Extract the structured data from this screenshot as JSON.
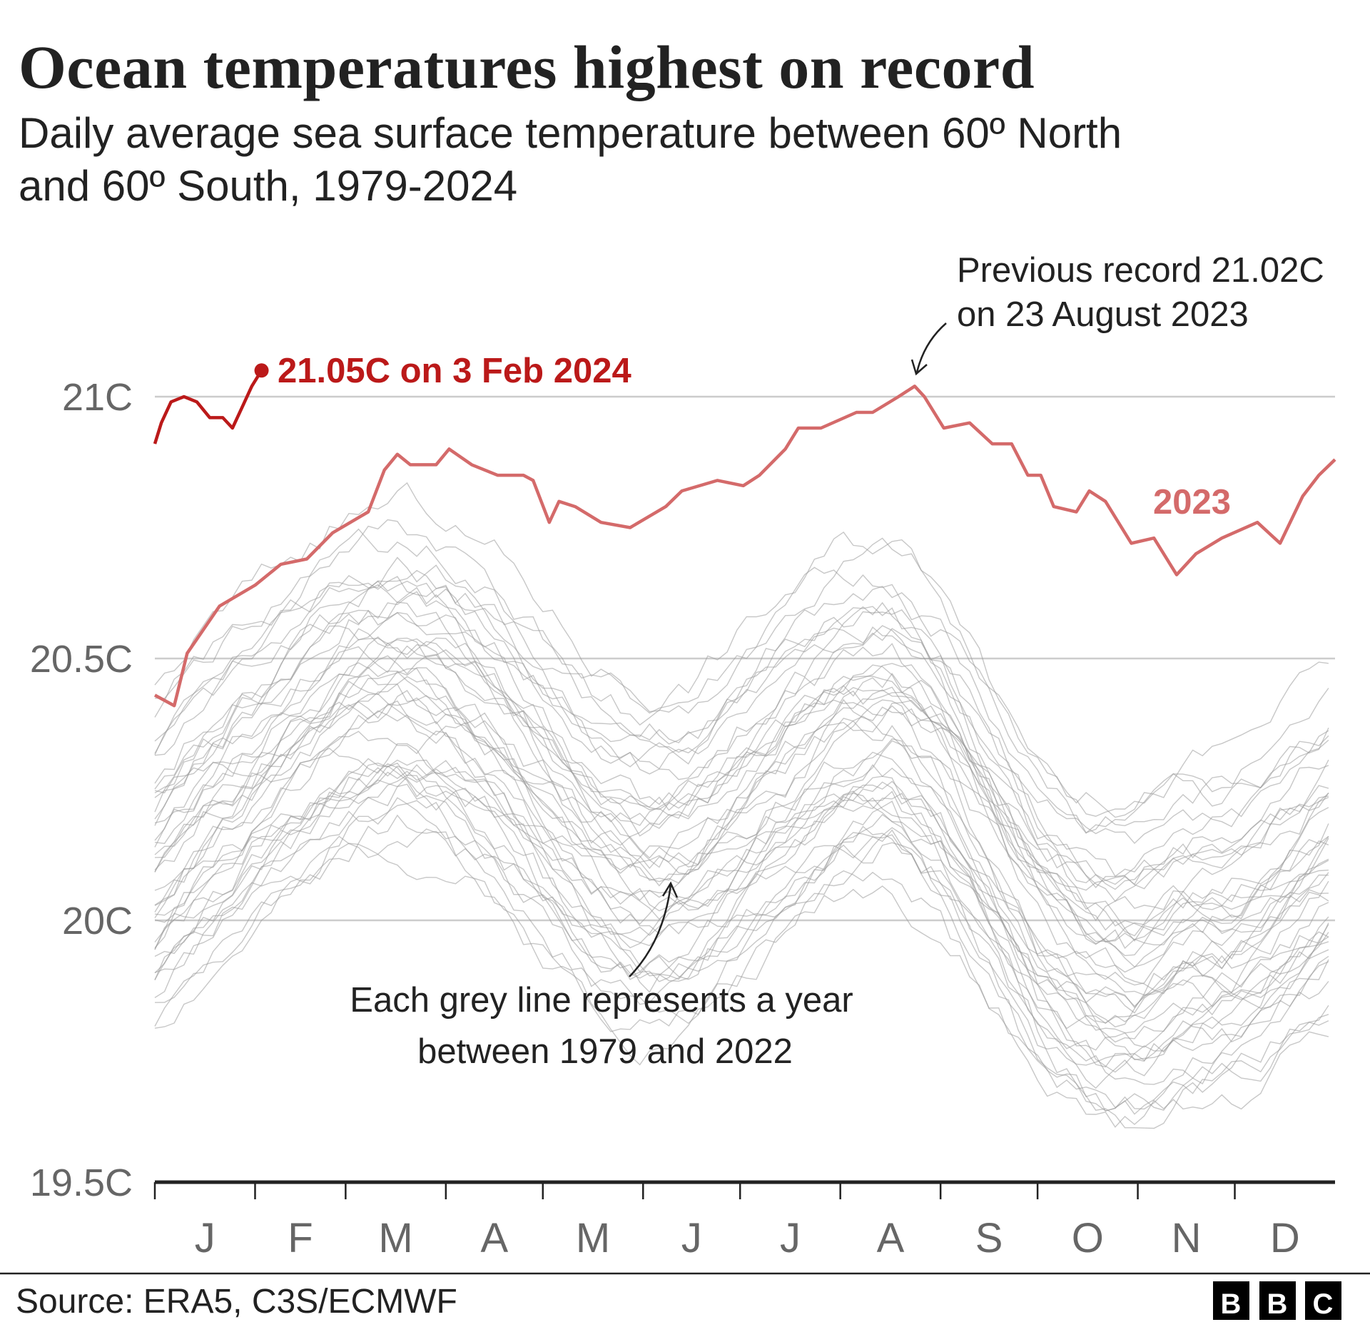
{
  "chart_data": {
    "type": "line",
    "title": "Ocean temperatures highest on record",
    "subtitle_line1": "Daily average sea surface temperature between 60º North",
    "subtitle_line2": "and 60º South, 1979-2024",
    "xlabel": "",
    "ylabel": "",
    "x_unit": "day of year",
    "xlim": [
      0,
      365
    ],
    "ylim": [
      19.5,
      21.2
    ],
    "y_ticks": [
      {
        "value": 21.0,
        "label": "21C"
      },
      {
        "value": 20.5,
        "label": "20.5C"
      },
      {
        "value": 20.0,
        "label": "20C"
      },
      {
        "value": 19.5,
        "label": "19.5C"
      }
    ],
    "month_ticks": [
      0,
      31,
      59,
      90,
      120,
      151,
      181,
      212,
      243,
      273,
      304,
      334,
      365
    ],
    "month_labels": [
      "J",
      "F",
      "M",
      "A",
      "M",
      "J",
      "J",
      "A",
      "S",
      "O",
      "N",
      "D"
    ],
    "grid": true,
    "grey_years": {
      "label": "1979-2022",
      "days": [
        0,
        15,
        31,
        45,
        59,
        75,
        90,
        105,
        120,
        135,
        151,
        166,
        181,
        196,
        212,
        228,
        243,
        258,
        273,
        289,
        304,
        319,
        334,
        350,
        365
      ],
      "climatology": [
        20.1,
        20.2,
        20.28,
        20.35,
        20.42,
        20.45,
        20.42,
        20.35,
        20.25,
        20.15,
        20.1,
        20.12,
        20.2,
        20.28,
        20.36,
        20.38,
        20.3,
        20.15,
        20.0,
        19.92,
        19.9,
        19.95,
        19.97,
        20.05,
        20.12
      ],
      "year_offsets": [
        -0.25,
        -0.3,
        -0.2,
        -0.28,
        -0.22,
        -0.18,
        -0.26,
        -0.15,
        -0.2,
        -0.12,
        -0.22,
        -0.1,
        -0.16,
        -0.08,
        -0.14,
        -0.05,
        -0.12,
        -0.02,
        -0.1,
        0.0,
        -0.06,
        0.04,
        -0.03,
        0.08,
        0.02,
        -0.04,
        0.06,
        0.1,
        0.03,
        0.12,
        0.08,
        0.15,
        0.05,
        0.18,
        0.12,
        0.2,
        0.1,
        0.22,
        0.16,
        0.26,
        0.3,
        0.2,
        0.28,
        0.35
      ],
      "color": "#999999"
    },
    "series": [
      {
        "name": "2023",
        "color": "#d46a6a",
        "points": [
          [
            0,
            20.43
          ],
          [
            6,
            20.41
          ],
          [
            10,
            20.51
          ],
          [
            20,
            20.6
          ],
          [
            31,
            20.64
          ],
          [
            39,
            20.68
          ],
          [
            47,
            20.69
          ],
          [
            55,
            20.74
          ],
          [
            66,
            20.78
          ],
          [
            71,
            20.86
          ],
          [
            75,
            20.89
          ],
          [
            79,
            20.87
          ],
          [
            87,
            20.87
          ],
          [
            91,
            20.9
          ],
          [
            98,
            20.87
          ],
          [
            106,
            20.85
          ],
          [
            114,
            20.85
          ],
          [
            117,
            20.84
          ],
          [
            122,
            20.76
          ],
          [
            125,
            20.8
          ],
          [
            130,
            20.79
          ],
          [
            138,
            20.76
          ],
          [
            147,
            20.75
          ],
          [
            158,
            20.79
          ],
          [
            163,
            20.82
          ],
          [
            174,
            20.84
          ],
          [
            182,
            20.83
          ],
          [
            187,
            20.85
          ],
          [
            195,
            20.9
          ],
          [
            199,
            20.94
          ],
          [
            206,
            20.94
          ],
          [
            217,
            20.97
          ],
          [
            222,
            20.97
          ],
          [
            230,
            21.0
          ],
          [
            235,
            21.02
          ],
          [
            238,
            21.0
          ],
          [
            244,
            20.94
          ],
          [
            252,
            20.95
          ],
          [
            259,
            20.91
          ],
          [
            265,
            20.91
          ],
          [
            270,
            20.85
          ],
          [
            274,
            20.85
          ],
          [
            278,
            20.79
          ],
          [
            285,
            20.78
          ],
          [
            289,
            20.82
          ],
          [
            294,
            20.8
          ],
          [
            302,
            20.72
          ],
          [
            309,
            20.73
          ],
          [
            316,
            20.66
          ],
          [
            322,
            20.7
          ],
          [
            330,
            20.73
          ],
          [
            341,
            20.76
          ],
          [
            348,
            20.72
          ],
          [
            355,
            20.81
          ],
          [
            360,
            20.85
          ],
          [
            365,
            20.88
          ]
        ]
      },
      {
        "name": "2024",
        "color": "#bb1919",
        "points": [
          [
            0,
            20.91
          ],
          [
            2,
            20.95
          ],
          [
            5,
            20.99
          ],
          [
            9,
            21.0
          ],
          [
            13,
            20.99
          ],
          [
            17,
            20.96
          ],
          [
            21,
            20.96
          ],
          [
            24,
            20.94
          ],
          [
            27,
            20.98
          ],
          [
            30,
            21.02
          ],
          [
            33,
            21.05
          ]
        ]
      }
    ],
    "annotations": {
      "record_2024": "21.05C on 3 Feb 2024",
      "label_2023": "2023",
      "previous_record_line1": "Previous record 21.02C",
      "previous_record_line2": "on 23 August 2023",
      "grey_line1": "Each grey line represents a year",
      "grey_line2": "between 1979 and 2022"
    },
    "source": "Source: ERA5, C3S/ECMWF",
    "logo": "BBC"
  }
}
